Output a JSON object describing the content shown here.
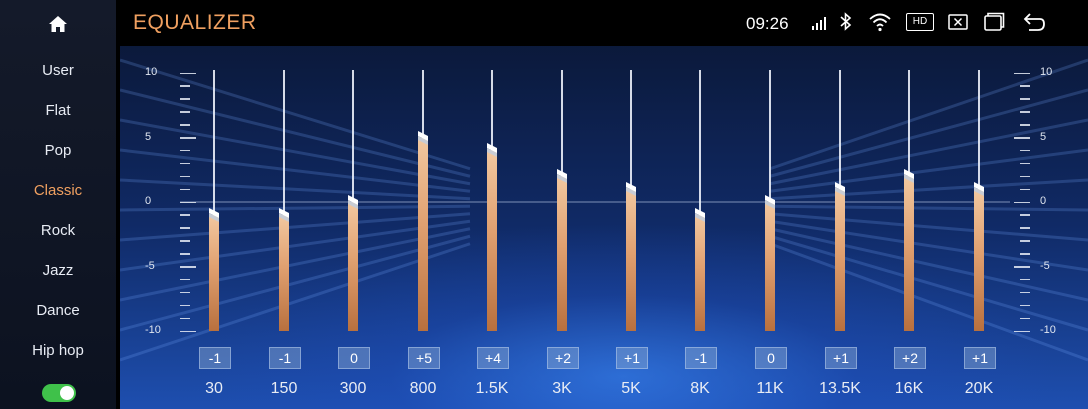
{
  "header": {
    "title": "EQUALIZER",
    "clock": "09:26"
  },
  "status_icons": [
    "signal-icon",
    "bluetooth-icon",
    "wifi-icon",
    "hd-icon",
    "close-box-icon",
    "window-icon",
    "back-icon"
  ],
  "status_text": {
    "hd": "HD"
  },
  "sidebar": {
    "presets": [
      {
        "label": "User",
        "active": false
      },
      {
        "label": "Flat",
        "active": false
      },
      {
        "label": "Pop",
        "active": false
      },
      {
        "label": "Classic",
        "active": true
      },
      {
        "label": "Rock",
        "active": false
      },
      {
        "label": "Jazz",
        "active": false
      },
      {
        "label": "Dance",
        "active": false
      },
      {
        "label": "Hip hop",
        "active": false
      }
    ],
    "toggle_on": true
  },
  "scale": {
    "ticks": [
      "10",
      "5",
      "0",
      "-5",
      "-10"
    ],
    "min": -10,
    "max": 10
  },
  "bands": [
    {
      "freq": "30",
      "value": -1,
      "label": "-1"
    },
    {
      "freq": "150",
      "value": -1,
      "label": "-1"
    },
    {
      "freq": "300",
      "value": 0,
      "label": "0"
    },
    {
      "freq": "800",
      "value": 5,
      "label": "+5"
    },
    {
      "freq": "1.5K",
      "value": 4,
      "label": "+4"
    },
    {
      "freq": "3K",
      "value": 2,
      "label": "+2"
    },
    {
      "freq": "5K",
      "value": 1,
      "label": "+1"
    },
    {
      "freq": "8K",
      "value": -1,
      "label": "-1"
    },
    {
      "freq": "11K",
      "value": 0,
      "label": "0"
    },
    {
      "freq": "13.5K",
      "value": 1,
      "label": "+1"
    },
    {
      "freq": "16K",
      "value": 2,
      "label": "+2"
    },
    {
      "freq": "20K",
      "value": 1,
      "label": "+1"
    }
  ],
  "colors": {
    "accent": "#f0a060",
    "toggle": "#3fc14a",
    "bar": "#e0a070"
  }
}
